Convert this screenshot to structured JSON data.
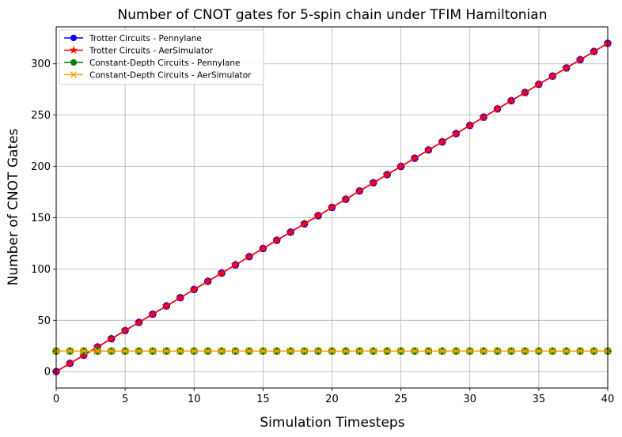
{
  "chart_data": {
    "type": "line",
    "title": "Number of CNOT gates for 5-spin chain under TFIM Hamiltonian",
    "xlabel": "Simulation Timesteps",
    "ylabel": "Number of CNOT Gates",
    "xlim": [
      0,
      40
    ],
    "ylim": [
      -16,
      336
    ],
    "xticks": [
      0,
      5,
      10,
      15,
      20,
      25,
      30,
      35,
      40
    ],
    "yticks": [
      0,
      50,
      100,
      150,
      200,
      250,
      300
    ],
    "grid": true,
    "legend_position": "top-left",
    "x": [
      0,
      1,
      2,
      3,
      4,
      5,
      6,
      7,
      8,
      9,
      10,
      11,
      12,
      13,
      14,
      15,
      16,
      17,
      18,
      19,
      20,
      21,
      22,
      23,
      24,
      25,
      26,
      27,
      28,
      29,
      30,
      31,
      32,
      33,
      34,
      35,
      36,
      37,
      38,
      39,
      40
    ],
    "series": [
      {
        "name": "Trotter Circuits - Pennylane",
        "color": "#0000ff",
        "marker": "circle",
        "values": [
          0,
          8,
          16,
          24,
          32,
          40,
          48,
          56,
          64,
          72,
          80,
          88,
          96,
          104,
          112,
          120,
          128,
          136,
          144,
          152,
          160,
          168,
          176,
          184,
          192,
          200,
          208,
          216,
          224,
          232,
          240,
          248,
          256,
          264,
          272,
          280,
          288,
          296,
          304,
          312,
          320
        ]
      },
      {
        "name": "Trotter Circuits - AerSimulator",
        "color": "#ff0000",
        "marker": "star",
        "values": [
          0,
          8,
          16,
          24,
          32,
          40,
          48,
          56,
          64,
          72,
          80,
          88,
          96,
          104,
          112,
          120,
          128,
          136,
          144,
          152,
          160,
          168,
          176,
          184,
          192,
          200,
          208,
          216,
          224,
          232,
          240,
          248,
          256,
          264,
          272,
          280,
          288,
          296,
          304,
          312,
          320
        ]
      },
      {
        "name": "Constant-Depth Circuits - Pennylane",
        "color": "#008000",
        "marker": "circle",
        "values": [
          20,
          20,
          20,
          20,
          20,
          20,
          20,
          20,
          20,
          20,
          20,
          20,
          20,
          20,
          20,
          20,
          20,
          20,
          20,
          20,
          20,
          20,
          20,
          20,
          20,
          20,
          20,
          20,
          20,
          20,
          20,
          20,
          20,
          20,
          20,
          20,
          20,
          20,
          20,
          20,
          20
        ]
      },
      {
        "name": "Constant-Depth Circuits - AerSimulator",
        "color": "#ffa500",
        "marker": "x",
        "values": [
          20,
          20,
          20,
          20,
          20,
          20,
          20,
          20,
          20,
          20,
          20,
          20,
          20,
          20,
          20,
          20,
          20,
          20,
          20,
          20,
          20,
          20,
          20,
          20,
          20,
          20,
          20,
          20,
          20,
          20,
          20,
          20,
          20,
          20,
          20,
          20,
          20,
          20,
          20,
          20,
          20
        ]
      }
    ]
  }
}
